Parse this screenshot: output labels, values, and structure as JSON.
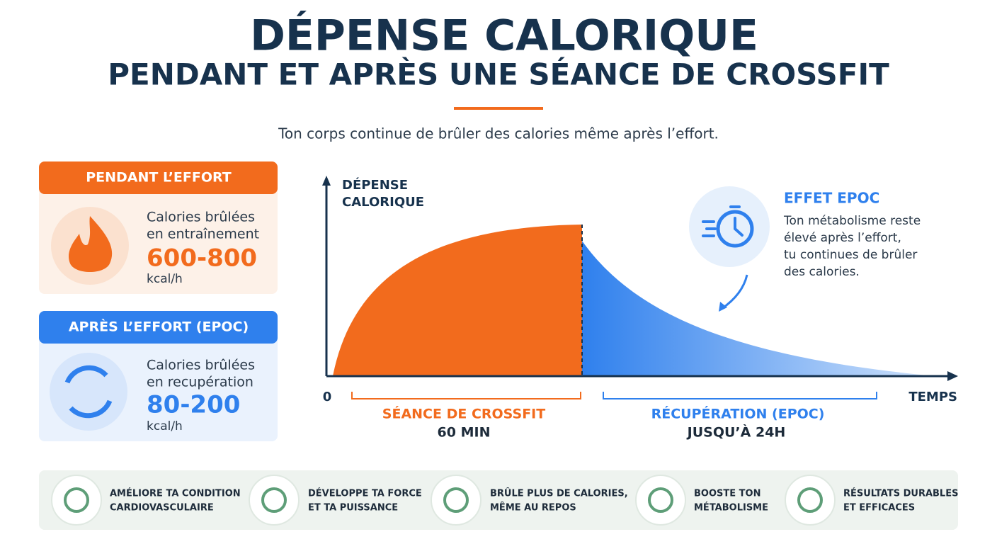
{
  "header": {
    "title": "DÉPENSE CALORIQUE",
    "subtitle": "PENDANT ET APRÈS UNE SÉANCE DE CROSSFIT",
    "tagline": "Ton corps continue de brûler des calories même après l’effort."
  },
  "cards": [
    {
      "header": "PENDANT L’EFFORT",
      "label": [
        "Calories brûlées",
        "en entraînement"
      ],
      "value": "600-800",
      "unit": "kcal/h"
    },
    {
      "header": "APRÈS L’EFFORT (EPOC)",
      "label": [
        "Calories brûlées",
        "en recupération"
      ],
      "value": "80-200",
      "unit": "kcal/h"
    }
  ],
  "graph": {
    "y_label": [
      "DÉPENSE",
      "CALORIQUE"
    ],
    "origin": "0",
    "x_label": "TEMPS",
    "phases": [
      {
        "label": "SÉANCE DE CROSSFIT",
        "duration": "60 MIN"
      },
      {
        "label": "RÉCUPÉRATION (EPOC)",
        "duration": "JUSQU’À 24H"
      }
    ],
    "epoc": {
      "title": "EFFET EPOC",
      "text": [
        "Ton métabolisme reste",
        "élevé après l’effort,",
        "tu continues de brûler",
        "des calories."
      ]
    }
  },
  "benefits": [
    {
      "text": [
        "AMÉLIORE TA CONDITION",
        "CARDIOVASCULAIRE"
      ]
    },
    {
      "text": [
        "DÉVELOPPE TA FORCE",
        "ET TA PUISSANCE"
      ]
    },
    {
      "text": [
        "BRÛLE PLUS DE CALORIES,",
        "MÊME AU REPOS"
      ]
    },
    {
      "text": [
        "BOOSTE TON",
        "MÉTABOLISME"
      ]
    },
    {
      "text": [
        "RÉSULTATS DURABLES",
        "ET EFFICACES"
      ]
    }
  ]
}
